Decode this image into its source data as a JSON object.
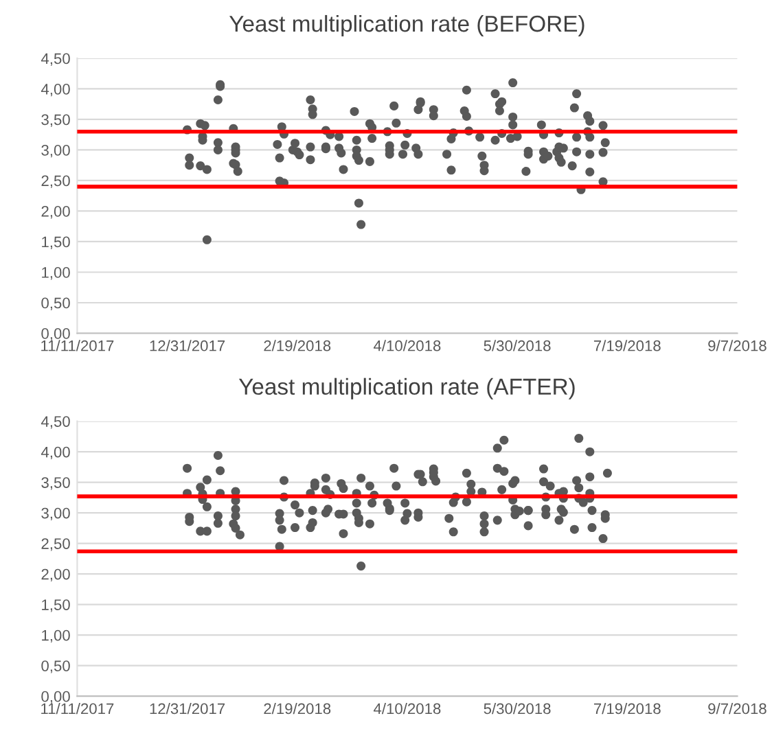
{
  "chart_data": [
    {
      "type": "scatter",
      "title": "Yeast multiplication rate (BEFORE)",
      "series": [
        {
          "color": "#595959",
          "x": [
            "2017-12-31",
            "2018-01-01",
            "2018-01-01",
            "2018-01-06",
            "2018-01-06",
            "2018-01-07",
            "2018-01-07",
            "2018-01-08",
            "2018-01-09",
            "2018-01-09",
            "2018-01-14",
            "2018-01-14",
            "2018-01-14",
            "2018-01-15",
            "2018-01-15",
            "2018-01-21",
            "2018-01-21",
            "2018-01-22",
            "2018-01-22",
            "2018-01-22",
            "2018-01-22",
            "2018-01-23",
            "2018-02-10",
            "2018-02-11",
            "2018-02-11",
            "2018-02-12",
            "2018-02-13",
            "2018-02-13",
            "2018-02-17",
            "2018-02-18",
            "2018-02-19",
            "2018-02-20",
            "2018-02-25",
            "2018-02-25",
            "2018-02-25",
            "2018-02-26",
            "2018-02-26",
            "2018-03-04",
            "2018-03-04",
            "2018-03-04",
            "2018-03-06",
            "2018-03-10",
            "2018-03-10",
            "2018-03-11",
            "2018-03-12",
            "2018-03-17",
            "2018-03-18",
            "2018-03-18",
            "2018-03-18",
            "2018-03-19",
            "2018-03-19",
            "2018-03-20",
            "2018-03-24",
            "2018-03-24",
            "2018-03-25",
            "2018-03-25",
            "2018-04-01",
            "2018-04-02",
            "2018-04-02",
            "2018-04-02",
            "2018-04-04",
            "2018-04-05",
            "2018-04-08",
            "2018-04-09",
            "2018-04-10",
            "2018-04-14",
            "2018-04-15",
            "2018-04-15",
            "2018-04-16",
            "2018-04-16",
            "2018-04-22",
            "2018-04-22",
            "2018-04-28",
            "2018-04-30",
            "2018-04-30",
            "2018-05-01",
            "2018-05-06",
            "2018-05-07",
            "2018-05-07",
            "2018-05-08",
            "2018-05-13",
            "2018-05-14",
            "2018-05-15",
            "2018-05-15",
            "2018-05-20",
            "2018-05-20",
            "2018-05-22",
            "2018-05-22",
            "2018-05-23",
            "2018-05-23",
            "2018-05-27",
            "2018-05-28",
            "2018-05-28",
            "2018-05-28",
            "2018-05-30",
            "2018-06-03",
            "2018-06-04",
            "2018-06-04",
            "2018-06-10",
            "2018-06-11",
            "2018-06-11",
            "2018-06-11",
            "2018-06-13",
            "2018-06-17",
            "2018-06-18",
            "2018-06-18",
            "2018-06-18",
            "2018-06-19",
            "2018-06-20",
            "2018-06-24",
            "2018-06-25",
            "2018-06-26",
            "2018-06-26",
            "2018-06-26",
            "2018-06-28",
            "2018-07-01",
            "2018-07-01",
            "2018-07-02",
            "2018-07-02",
            "2018-07-02",
            "2018-07-02",
            "2018-07-08",
            "2018-07-08",
            "2018-07-08",
            "2018-07-09"
          ],
          "values": [
            3.33,
            2.87,
            2.75,
            3.43,
            2.74,
            3.22,
            3.16,
            3.4,
            2.68,
            1.53,
            3.82,
            3.12,
            3.0,
            4.07,
            4.04,
            3.35,
            2.78,
            3.0,
            3.05,
            2.95,
            2.76,
            2.65,
            3.09,
            2.87,
            2.49,
            3.38,
            2.46,
            3.26,
            3.0,
            3.11,
            2.97,
            2.92,
            3.82,
            2.84,
            3.05,
            3.67,
            3.58,
            3.32,
            3.05,
            3.02,
            3.25,
            3.22,
            3.03,
            2.95,
            2.68,
            3.63,
            3.16,
            3.0,
            2.9,
            2.83,
            2.13,
            1.78,
            3.43,
            2.81,
            3.37,
            3.19,
            3.3,
            3.07,
            3.0,
            2.93,
            3.72,
            3.44,
            2.93,
            3.08,
            3.27,
            3.03,
            2.93,
            3.66,
            3.77,
            3.79,
            3.66,
            3.56,
            2.93,
            2.67,
            3.18,
            3.28,
            3.64,
            3.98,
            3.55,
            3.31,
            3.21,
            2.9,
            2.75,
            2.66,
            3.92,
            3.16,
            3.75,
            3.64,
            3.27,
            3.79,
            3.19,
            4.1,
            3.41,
            3.54,
            3.22,
            2.65,
            2.98,
            2.93,
            3.41,
            3.25,
            2.97,
            2.85,
            2.9,
            2.97,
            3.28,
            3.05,
            2.87,
            2.8,
            3.03,
            2.74,
            3.69,
            3.92,
            3.21,
            2.97,
            2.35,
            3.3,
            3.56,
            3.47,
            3.21,
            2.93,
            2.64,
            2.48,
            3.4,
            2.96,
            3.12
          ]
        }
      ],
      "marker": "circle",
      "xlim": [
        "2017-11-11",
        "2018-09-07"
      ],
      "xticks": [
        {
          "value": "2017-11-11",
          "label": "11/11/2017"
        },
        {
          "value": "2017-12-31",
          "label": "12/31/2017"
        },
        {
          "value": "2018-02-19",
          "label": "2/19/2018"
        },
        {
          "value": "2018-04-10",
          "label": "4/10/2018"
        },
        {
          "value": "2018-05-30",
          "label": "5/30/2018"
        },
        {
          "value": "2018-07-19",
          "label": "7/19/2018"
        },
        {
          "value": "2018-09-07",
          "label": "9/7/2018"
        }
      ],
      "ylim": [
        0,
        4.5
      ],
      "yticks": [
        {
          "value": 0,
          "label": "0,00"
        },
        {
          "value": 0.5,
          "label": "0,50"
        },
        {
          "value": 1,
          "label": "1,00"
        },
        {
          "value": 1.5,
          "label": "1,50"
        },
        {
          "value": 2,
          "label": "2,00"
        },
        {
          "value": 2.5,
          "label": "2,50"
        },
        {
          "value": 3,
          "label": "3,00"
        },
        {
          "value": 3.5,
          "label": "3,50"
        },
        {
          "value": 4,
          "label": "4,00"
        },
        {
          "value": 4.5,
          "label": "4,50"
        }
      ],
      "grid": "y",
      "ref_lines": [
        {
          "axis": "y",
          "value": 3.3,
          "color": "#ff0000"
        },
        {
          "axis": "y",
          "value": 2.4,
          "color": "#ff0000"
        }
      ]
    },
    {
      "type": "scatter",
      "title": "Yeast multiplication rate (AFTER)",
      "series": [
        {
          "color": "#595959",
          "x": [
            "2017-12-31",
            "2017-12-31",
            "2018-01-01",
            "2018-01-01",
            "2018-01-06",
            "2018-01-07",
            "2018-01-07",
            "2018-01-09",
            "2018-01-09",
            "2018-01-06",
            "2018-01-09",
            "2018-01-14",
            "2018-01-15",
            "2018-01-14",
            "2018-01-14",
            "2018-01-15",
            "2018-01-22",
            "2018-01-22",
            "2018-01-22",
            "2018-01-22",
            "2018-01-21",
            "2018-01-22",
            "2018-01-24",
            "2018-02-11",
            "2018-02-11",
            "2018-02-11",
            "2018-02-13",
            "2018-02-13",
            "2018-02-12",
            "2018-02-18",
            "2018-02-20",
            "2018-02-18",
            "2018-02-25",
            "2018-02-25",
            "2018-02-26",
            "2018-02-26",
            "2018-02-27",
            "2018-02-27",
            "2018-03-04",
            "2018-03-04",
            "2018-03-05",
            "2018-03-04",
            "2018-03-06",
            "2018-03-11",
            "2018-03-12",
            "2018-03-10",
            "2018-03-12",
            "2018-03-12",
            "2018-03-20",
            "2018-03-18",
            "2018-03-18",
            "2018-03-18",
            "2018-03-19",
            "2018-03-19",
            "2018-03-20",
            "2018-03-24",
            "2018-03-26",
            "2018-03-25",
            "2018-03-24",
            "2018-04-01",
            "2018-04-02",
            "2018-04-02",
            "2018-04-04",
            "2018-04-05",
            "2018-04-09",
            "2018-04-09",
            "2018-04-10",
            "2018-04-15",
            "2018-04-15",
            "2018-04-15",
            "2018-04-16",
            "2018-04-17",
            "2018-04-22",
            "2018-04-22",
            "2018-04-23",
            "2018-04-22",
            "2018-04-29",
            "2018-05-01",
            "2018-05-01",
            "2018-05-02",
            "2018-05-07",
            "2018-05-07",
            "2018-05-09",
            "2018-05-09",
            "2018-05-14",
            "2018-05-15",
            "2018-05-15",
            "2018-05-15",
            "2018-05-21",
            "2018-05-24",
            "2018-05-21",
            "2018-05-24",
            "2018-05-23",
            "2018-05-21",
            "2018-05-28",
            "2018-05-29",
            "2018-05-28",
            "2018-05-29",
            "2018-05-29",
            "2018-05-31",
            "2018-06-04",
            "2018-06-04",
            "2018-06-04",
            "2018-06-11",
            "2018-06-11",
            "2018-06-14",
            "2018-06-12",
            "2018-06-12",
            "2018-06-12",
            "2018-06-18",
            "2018-06-18",
            "2018-06-19",
            "2018-06-20",
            "2018-06-20",
            "2018-06-20",
            "2018-06-25",
            "2018-06-26",
            "2018-06-27",
            "2018-06-27",
            "2018-06-27",
            "2018-06-29",
            "2018-07-02",
            "2018-07-02",
            "2018-07-02",
            "2018-07-02",
            "2018-07-03",
            "2018-07-03",
            "2018-07-08",
            "2018-07-09",
            "2018-07-09",
            "2018-07-10"
          ],
          "values": [
            3.73,
            3.32,
            2.93,
            2.86,
            3.42,
            3.31,
            3.22,
            3.54,
            3.1,
            2.7,
            2.7,
            3.94,
            3.69,
            2.95,
            2.83,
            3.32,
            3.35,
            3.2,
            3.06,
            2.95,
            2.82,
            2.75,
            2.64,
            2.99,
            2.88,
            2.45,
            3.53,
            3.26,
            2.73,
            3.13,
            3.0,
            2.76,
            3.32,
            2.76,
            2.84,
            3.04,
            3.49,
            3.44,
            3.57,
            3.38,
            3.06,
            3.0,
            3.3,
            3.48,
            3.4,
            2.98,
            2.98,
            2.66,
            3.57,
            3.32,
            3.16,
            3.0,
            2.91,
            2.84,
            2.13,
            3.44,
            3.29,
            3.16,
            2.82,
            3.16,
            3.07,
            3.04,
            3.73,
            3.44,
            3.16,
            2.88,
            2.99,
            3.0,
            2.93,
            3.63,
            3.63,
            3.51,
            3.72,
            3.59,
            3.52,
            3.66,
            2.91,
            2.69,
            3.17,
            3.26,
            3.65,
            3.18,
            3.47,
            3.35,
            3.34,
            2.95,
            2.82,
            2.69,
            4.06,
            4.19,
            3.73,
            3.68,
            3.38,
            2.88,
            3.48,
            3.53,
            3.21,
            3.06,
            2.97,
            3.03,
            3.04,
            3.04,
            2.79,
            3.72,
            3.51,
            3.44,
            3.26,
            3.06,
            2.97,
            3.32,
            2.88,
            3.06,
            3.24,
            3.01,
            3.35,
            2.73,
            3.53,
            4.22,
            3.41,
            3.24,
            3.17,
            3.32,
            3.24,
            4.0,
            3.59,
            3.04,
            2.76,
            2.58,
            2.97,
            2.91,
            3.65
          ]
        }
      ],
      "marker": "circle",
      "xlim": [
        "2017-11-11",
        "2018-09-07"
      ],
      "xticks": [
        {
          "value": "2017-11-11",
          "label": "11/11/2017"
        },
        {
          "value": "2017-12-31",
          "label": "12/31/2017"
        },
        {
          "value": "2018-02-19",
          "label": "2/19/2018"
        },
        {
          "value": "2018-04-10",
          "label": "4/10/2018"
        },
        {
          "value": "2018-05-30",
          "label": "5/30/2018"
        },
        {
          "value": "2018-07-19",
          "label": "7/19/2018"
        },
        {
          "value": "2018-09-07",
          "label": "9/7/2018"
        }
      ],
      "ylim": [
        0,
        4.5
      ],
      "yticks": [
        {
          "value": 0,
          "label": "0,00"
        },
        {
          "value": 0.5,
          "label": "0,50"
        },
        {
          "value": 1,
          "label": "1,00"
        },
        {
          "value": 1.5,
          "label": "1,50"
        },
        {
          "value": 2,
          "label": "2,00"
        },
        {
          "value": 2.5,
          "label": "2,50"
        },
        {
          "value": 3,
          "label": "3,00"
        },
        {
          "value": 3.5,
          "label": "3,50"
        },
        {
          "value": 4,
          "label": "4,00"
        },
        {
          "value": 4.5,
          "label": "4,50"
        }
      ],
      "grid": "y",
      "ref_lines": [
        {
          "axis": "y",
          "value": 3.27,
          "color": "#ff0000"
        },
        {
          "axis": "y",
          "value": 2.37,
          "color": "#ff0000"
        }
      ]
    }
  ]
}
